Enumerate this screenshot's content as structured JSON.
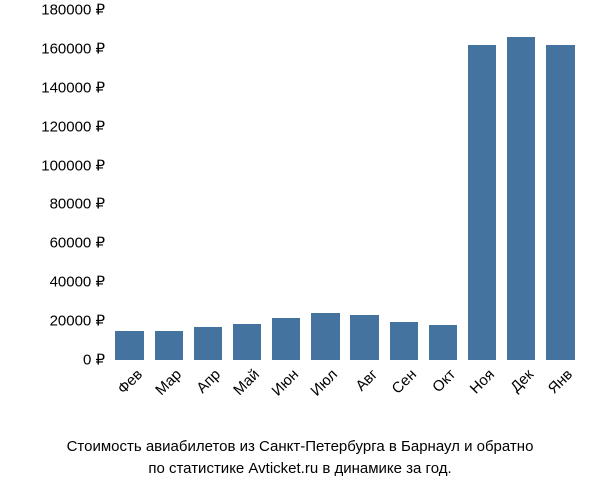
{
  "chart": {
    "type": "bar",
    "categories": [
      "Фев",
      "Мар",
      "Апр",
      "Май",
      "Июн",
      "Июл",
      "Авг",
      "Сен",
      "Окт",
      "Ноя",
      "Дек",
      "Янв"
    ],
    "values": [
      15000,
      15000,
      17000,
      18500,
      21500,
      24000,
      23000,
      19500,
      18000,
      162000,
      166000,
      162000
    ],
    "bar_color": "#4573a0",
    "background_color": "#ffffff",
    "ytick_values": [
      0,
      20000,
      40000,
      60000,
      80000,
      100000,
      120000,
      140000,
      160000,
      180000
    ],
    "ytick_labels": [
      "0 ₽",
      "20000 ₽",
      "40000 ₽",
      "60000 ₽",
      "80000 ₽",
      "100000 ₽",
      "120000 ₽",
      "140000 ₽",
      "160000 ₽",
      "180000 ₽"
    ],
    "ylim": [
      0,
      180000
    ],
    "bar_width": 0.72,
    "label_fontsize": 15,
    "xlabel_rotation": -45,
    "tick_color": "#666666"
  },
  "caption": {
    "line1": "Стоимость авиабилетов из Санкт-Петербурга в Барнаул и обратно",
    "line2": "по статистике Avticket.ru в динамике за год.",
    "fontsize": 15,
    "color": "#000000"
  }
}
